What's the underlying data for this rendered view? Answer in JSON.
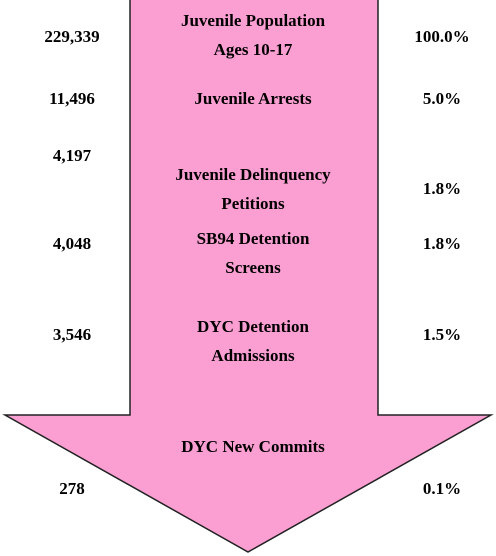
{
  "stages": [
    {
      "count": "229,339",
      "label_lines": [
        "Juvenile Population",
        "Ages 10-17"
      ],
      "percent": "100.0%"
    },
    {
      "count": "11,496",
      "label_lines": [
        "Juvenile Arrests"
      ],
      "percent": "5.0%"
    },
    {
      "count": "4,197",
      "label_lines": [
        "Juvenile Delinquency",
        "Petitions"
      ],
      "percent": "1.8%"
    },
    {
      "count": "4,048",
      "label_lines": [
        "SB94 Detention",
        "Screens"
      ],
      "percent": "1.8%"
    },
    {
      "count": "3,546",
      "label_lines": [
        "DYC Detention",
        "Admissions"
      ],
      "percent": "1.5%"
    },
    {
      "count": "278",
      "label_lines": [
        "DYC New Commits"
      ],
      "percent": "0.1%"
    }
  ]
}
